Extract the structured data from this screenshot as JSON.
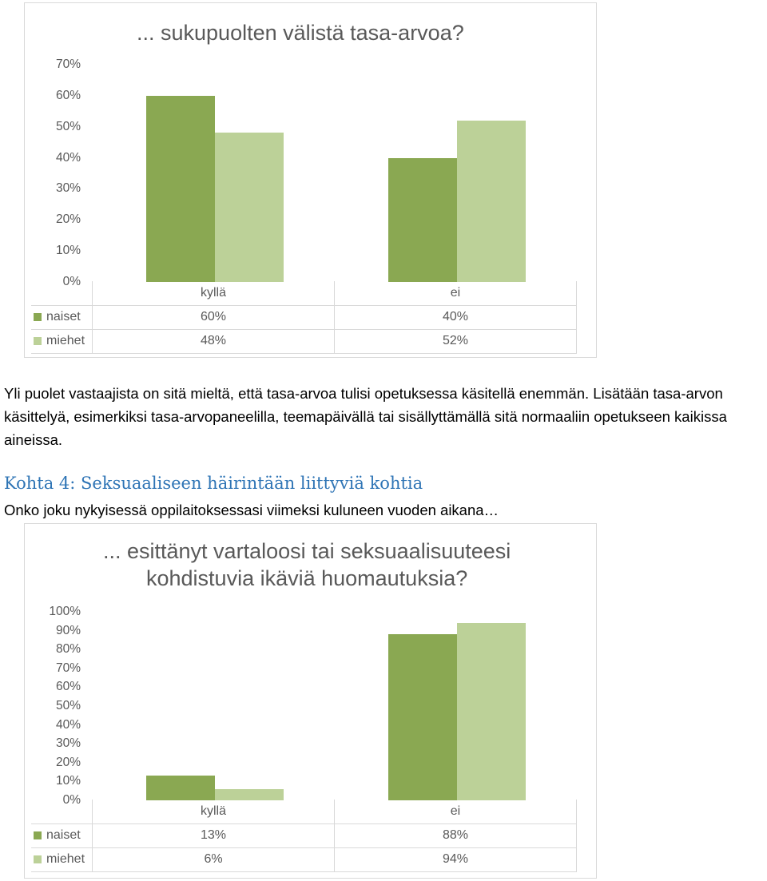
{
  "colors": {
    "naiset": "#8aa852",
    "miehet": "#bcd198",
    "text": "#595959",
    "heading": "#2e74b5"
  },
  "chart1": {
    "title": "... sukupuolten välistä tasa-arvoa?",
    "yticks": [
      "70%",
      "60%",
      "50%",
      "40%",
      "30%",
      "20%",
      "10%",
      "0%"
    ],
    "table": {
      "categories": [
        "kyllä",
        "ei"
      ],
      "rows": [
        {
          "label": "naiset",
          "values": [
            "60%",
            "40%"
          ]
        },
        {
          "label": "miehet",
          "values": [
            "48%",
            "52%"
          ]
        }
      ]
    }
  },
  "paragraph": "Yli puolet vastaajista on sitä mieltä, että tasa-arvoa tulisi opetuksessa käsitellä enemmän. Lisätään tasa-arvon käsittelyä, esimerkiksi tasa-arvopaneelilla, teemapäivällä tai sisällyttämällä sitä normaaliin opetukseen kaikissa aineissa.",
  "heading": "Kohta 4: Seksuaaliseen häirintään liittyviä kohtia",
  "question": "Onko joku nykyisessä oppilaitoksessasi viimeksi kuluneen vuoden aikana…",
  "chart2": {
    "title_line1": "... esittänyt vartaloosi tai seksuaalisuuteesi",
    "title_line2": "kohdistuvia ikäviä huomautuksia?",
    "yticks": [
      "100%",
      "90%",
      "80%",
      "70%",
      "60%",
      "50%",
      "40%",
      "30%",
      "20%",
      "10%",
      "0%"
    ],
    "table": {
      "categories": [
        "kyllä",
        "ei"
      ],
      "rows": [
        {
          "label": "naiset",
          "values": [
            "13%",
            "88%"
          ]
        },
        {
          "label": "miehet",
          "values": [
            "6%",
            "94%"
          ]
        }
      ]
    }
  },
  "chart_data": [
    {
      "type": "bar",
      "title": "... sukupuolten välistä tasa-arvoa?",
      "categories": [
        "kyllä",
        "ei"
      ],
      "series": [
        {
          "name": "naiset",
          "values": [
            60,
            40
          ]
        },
        {
          "name": "miehet",
          "values": [
            48,
            52
          ]
        }
      ],
      "ylim": [
        0,
        70
      ],
      "unit": "%",
      "grid": false,
      "legend": "data table"
    },
    {
      "type": "bar",
      "title": "... esittänyt vartaloosi tai seksuaalisuuteesi kohdistuvia ikäviä huomautuksia?",
      "categories": [
        "kyllä",
        "ei"
      ],
      "series": [
        {
          "name": "naiset",
          "values": [
            13,
            88
          ]
        },
        {
          "name": "miehet",
          "values": [
            6,
            94
          ]
        }
      ],
      "ylim": [
        0,
        100
      ],
      "unit": "%",
      "grid": false,
      "legend": "data table"
    }
  ]
}
